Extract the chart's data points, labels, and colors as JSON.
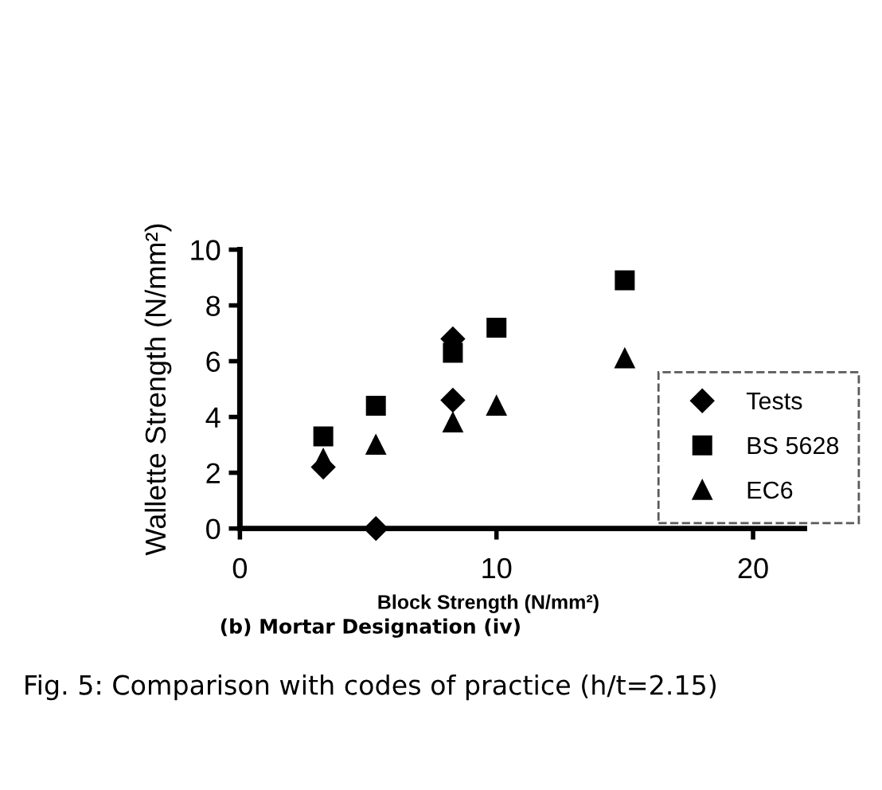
{
  "chart_data": {
    "type": "scatter",
    "xlabel": "Block Strength (N/mm²)",
    "ylabel": "Wallette Strength (N/mm²)",
    "annotations": [
      "(b) Mortar Designation (iv)",
      "Fig. 5: Comparison with codes of practice (h/t=2.15)"
    ],
    "xlim": [
      0,
      22
    ],
    "xticks": [
      0,
      10,
      20
    ],
    "ylim": [
      0,
      10
    ],
    "yticks": [
      0,
      2,
      4,
      6,
      8,
      10
    ],
    "grid": false,
    "legend": "right",
    "series": [
      {
        "name": "Tests",
        "color": "#000000",
        "marker": "diamond",
        "x": [
          3.25,
          5.3,
          8.3,
          8.3
        ],
        "values": [
          2.2,
          0,
          6.8,
          4.6
        ]
      },
      {
        "name": "BS 5628",
        "color": "#000000",
        "marker": "square",
        "x": [
          3.25,
          5.3,
          8.3,
          10,
          15
        ],
        "values": [
          3.3,
          4.4,
          6.3,
          7.2,
          8.9
        ]
      },
      {
        "name": "EC6",
        "color": "#000000",
        "marker": "triangle",
        "x": [
          3.25,
          5.3,
          8.3,
          10,
          15
        ],
        "values": [
          2.5,
          3.0,
          3.8,
          4.4,
          6.1
        ]
      }
    ]
  }
}
